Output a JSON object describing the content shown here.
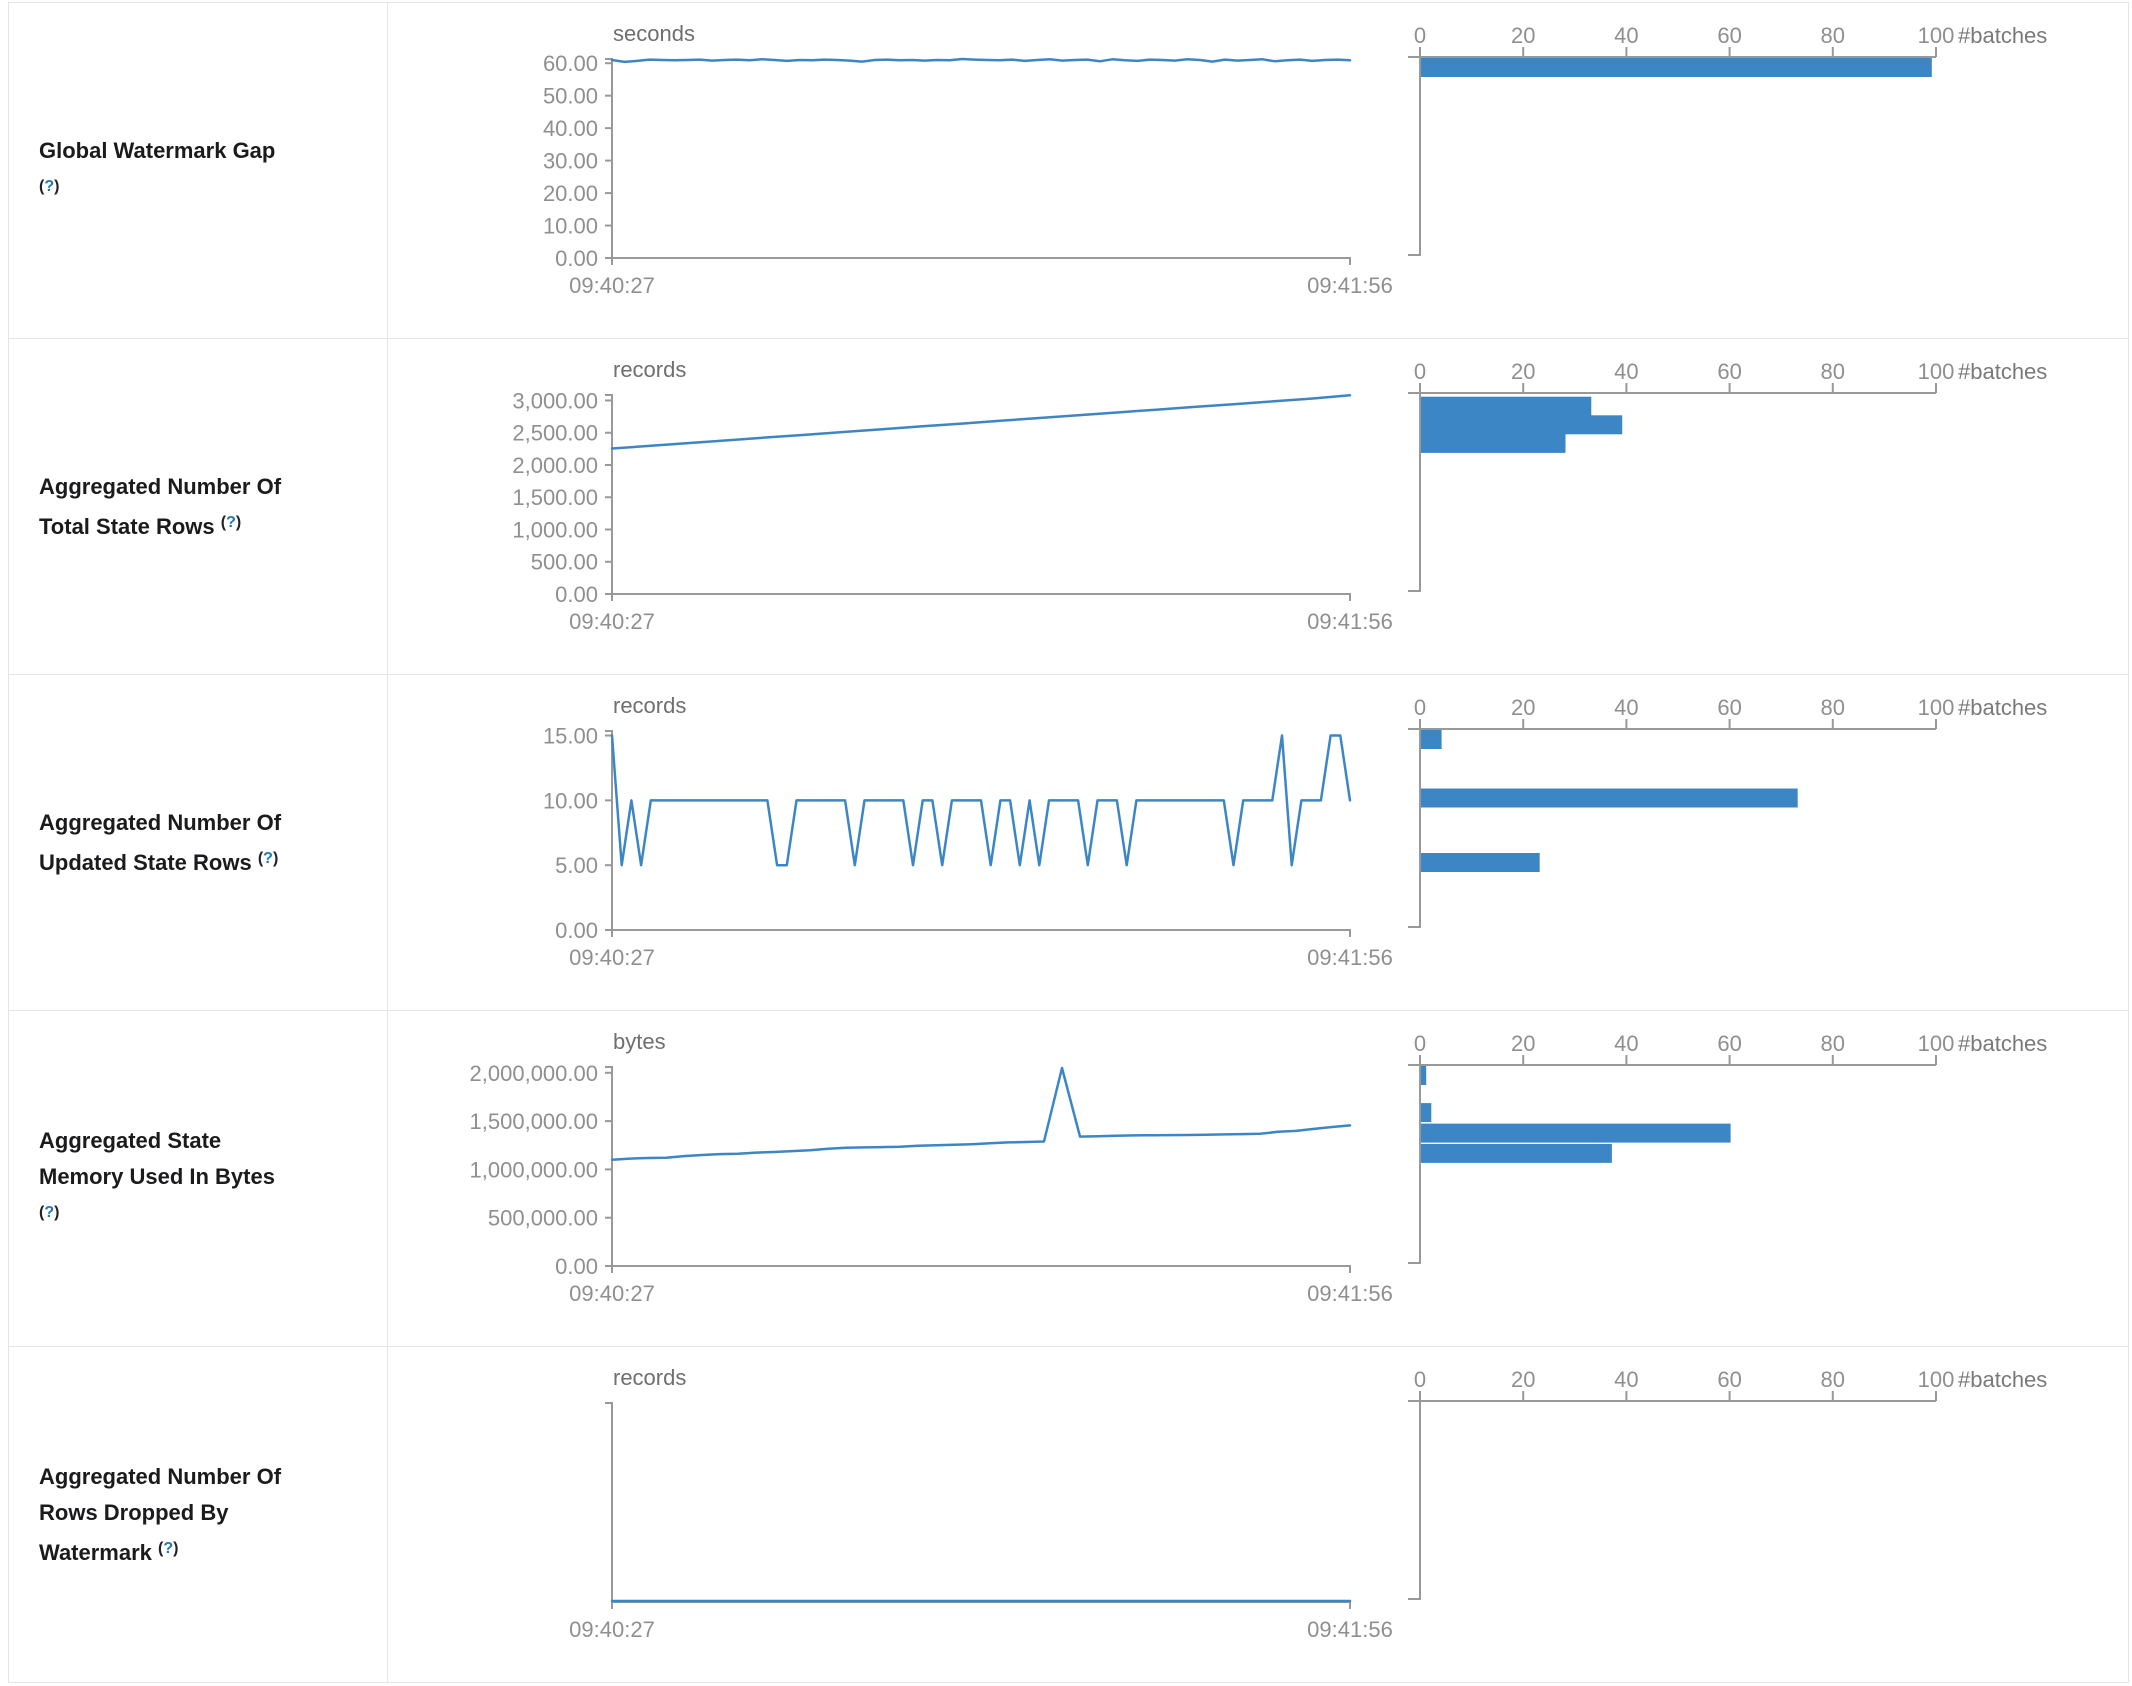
{
  "table": {
    "hist_axis": {
      "tick_values": [
        0,
        20,
        40,
        60,
        80,
        100
      ],
      "tick_labels": [
        "0",
        "20",
        "40",
        "60",
        "80",
        "100"
      ],
      "unit": "#batches"
    },
    "help": {
      "open": "(",
      "q": "?",
      "close": ")"
    },
    "rows": [
      {
        "label": "Global Watermark Gap",
        "unit": "seconds",
        "x_start": "09:40:27",
        "x_end": "09:41:56",
        "y_max": 61.3,
        "y_ticks": [
          {
            "v": 60,
            "label": "60.00"
          },
          {
            "v": 50,
            "label": "50.00"
          },
          {
            "v": 40,
            "label": "40.00"
          },
          {
            "v": 30,
            "label": "30.00"
          },
          {
            "v": 20,
            "label": "20.00"
          },
          {
            "v": 10,
            "label": "10.00"
          },
          {
            "v": 0,
            "label": "0.00"
          }
        ],
        "timeline": [
          61.0,
          60.4,
          60.7,
          61.1,
          61.0,
          60.9,
          61.0,
          61.1,
          60.8,
          61.0,
          61.1,
          60.9,
          61.2,
          61.0,
          60.7,
          61.0,
          60.9,
          61.1,
          61.0,
          60.8,
          60.5,
          61.0,
          61.1,
          60.9,
          61.0,
          60.8,
          61.0,
          60.9,
          61.3,
          61.1,
          61.0,
          60.9,
          61.1,
          60.7,
          61.0,
          61.2,
          60.8,
          61.0,
          61.1,
          60.6,
          61.2,
          60.9,
          60.7,
          61.1,
          61.0,
          60.8,
          61.2,
          61.0,
          60.5,
          61.1,
          60.8,
          61.0,
          61.2,
          60.6,
          60.9,
          61.1,
          60.7,
          61.0,
          61.1,
          60.9
        ],
        "histogram": [
          {
            "count": 99,
            "at": 61
          }
        ]
      },
      {
        "label": "Aggregated Number Of Total State Rows",
        "unit": "records",
        "x_start": "09:40:27",
        "x_end": "09:41:56",
        "y_max": 3085,
        "y_ticks": [
          {
            "v": 3000,
            "label": "3,000.00"
          },
          {
            "v": 2500,
            "label": "2,500.00"
          },
          {
            "v": 2000,
            "label": "2,000.00"
          },
          {
            "v": 1500,
            "label": "1,500.00"
          },
          {
            "v": 1000,
            "label": "1,000.00"
          },
          {
            "v": 500,
            "label": "500.00"
          },
          {
            "v": 0,
            "label": "0.00"
          }
        ],
        "timeline": [
          2255,
          2298,
          2341,
          2384,
          2427,
          2470,
          2513,
          2556,
          2599,
          2642,
          2685,
          2728,
          2771,
          2814,
          2857,
          2900,
          2943,
          2986,
          3029,
          3080
        ],
        "histogram": [
          {
            "count": 33,
            "at": 2880
          },
          {
            "count": 39,
            "at": 2590
          },
          {
            "count": 28,
            "at": 2300
          }
        ]
      },
      {
        "label": "Aggregated Number Of Updated State Rows",
        "unit": "records",
        "x_start": "09:40:27",
        "x_end": "09:41:56",
        "y_max": 15.35,
        "y_ticks": [
          {
            "v": 15,
            "label": "15.00"
          },
          {
            "v": 10,
            "label": "10.00"
          },
          {
            "v": 5,
            "label": "5.00"
          },
          {
            "v": 0,
            "label": "0.00"
          }
        ],
        "timeline": [
          15,
          5,
          10,
          5,
          10,
          10,
          10,
          10,
          10,
          10,
          10,
          10,
          10,
          10,
          10,
          10,
          10,
          5,
          5,
          10,
          10,
          10,
          10,
          10,
          10,
          5,
          10,
          10,
          10,
          10,
          10,
          5,
          10,
          10,
          5,
          10,
          10,
          10,
          10,
          5,
          10,
          10,
          5,
          10,
          5,
          10,
          10,
          10,
          10,
          5,
          10,
          10,
          10,
          5,
          10,
          10,
          10,
          10,
          10,
          10,
          10,
          10,
          10,
          10,
          5,
          10,
          10,
          10,
          10,
          15,
          5,
          10,
          10,
          10,
          15,
          15,
          10
        ],
        "histogram": [
          {
            "count": 4,
            "at": 15
          },
          {
            "count": 73,
            "at": 10
          },
          {
            "count": 23,
            "at": 5
          }
        ]
      },
      {
        "label": "Aggregated State Memory Used In Bytes",
        "unit": "bytes",
        "x_start": "09:40:27",
        "x_end": "09:41:56",
        "y_max": 2060000,
        "y_ticks": [
          {
            "v": 2000000,
            "label": "2,000,000.00"
          },
          {
            "v": 1500000,
            "label": "1,500,000.00"
          },
          {
            "v": 1000000,
            "label": "1,000,000.00"
          },
          {
            "v": 500000,
            "label": "500,000.00"
          },
          {
            "v": 0,
            "label": "0.00"
          }
        ],
        "timeline": [
          1100000,
          1112000,
          1118000,
          1121000,
          1138000,
          1149000,
          1158000,
          1163000,
          1174000,
          1180000,
          1189000,
          1199000,
          1214000,
          1224000,
          1228000,
          1231000,
          1235000,
          1244000,
          1250000,
          1255000,
          1261000,
          1270000,
          1279000,
          1284000,
          1289000,
          2050000,
          1340000,
          1344000,
          1349000,
          1352000,
          1354000,
          1355000,
          1356000,
          1359000,
          1362000,
          1365000,
          1369000,
          1389000,
          1399000,
          1419000,
          1439000,
          1455000
        ],
        "histogram": [
          {
            "count": 1,
            "at": 2050000
          },
          {
            "count": 2,
            "at": 1565000
          },
          {
            "count": 60,
            "at": 1352000
          },
          {
            "count": 37,
            "at": 1140000
          }
        ]
      },
      {
        "label": "Aggregated Number Of Rows Dropped By Watermark",
        "unit": "records",
        "x_start": "09:40:27",
        "x_end": "09:41:56",
        "y_max": 1,
        "y_ticks": [],
        "timeline": [
          0,
          0,
          0
        ],
        "histogram": []
      }
    ]
  }
}
